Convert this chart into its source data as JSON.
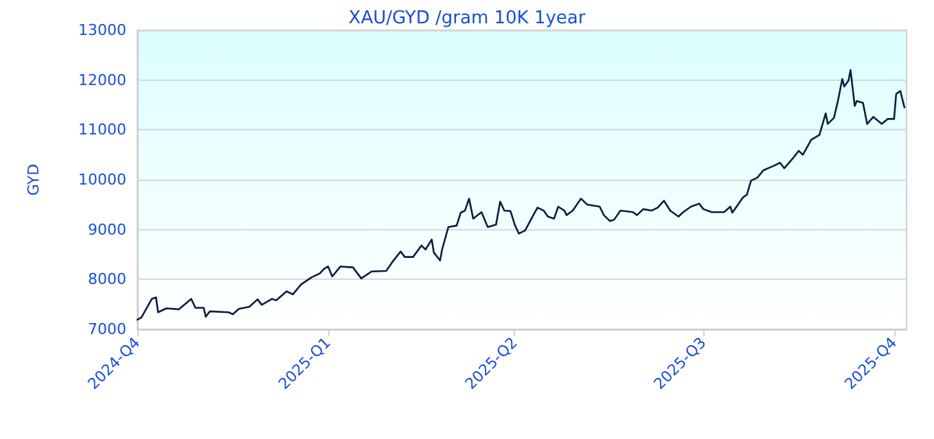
{
  "chart_data": {
    "type": "line",
    "title": "XAU/GYD /gram 10K 1year",
    "ylabel": "GYD",
    "x": [
      "2024-10-01",
      "2024-10-03",
      "2024-10-08",
      "2024-10-10",
      "2024-10-11",
      "2024-10-15",
      "2024-10-21",
      "2024-10-27",
      "2024-10-29",
      "2024-11-02",
      "2024-11-03",
      "2024-11-05",
      "2024-11-14",
      "2024-11-16",
      "2024-11-19",
      "2024-11-24",
      "2024-11-28",
      "2024-11-30",
      "2024-12-05",
      "2024-12-07",
      "2024-12-12",
      "2024-12-15",
      "2024-12-19",
      "2024-12-24",
      "2024-12-28",
      "2024-12-30",
      "2025-01-01",
      "2025-01-03",
      "2025-01-07",
      "2025-01-13",
      "2025-01-17",
      "2025-01-22",
      "2025-01-29",
      "2025-02-01",
      "2025-02-05",
      "2025-02-07",
      "2025-02-11",
      "2025-02-15",
      "2025-02-17",
      "2025-02-20",
      "2025-02-21",
      "2025-02-24",
      "2025-02-25",
      "2025-02-28",
      "2025-03-04",
      "2025-03-06",
      "2025-03-08",
      "2025-03-10",
      "2025-03-12",
      "2025-03-16",
      "2025-03-19",
      "2025-03-23",
      "2025-03-25",
      "2025-03-27",
      "2025-03-30",
      "2025-04-01",
      "2025-04-03",
      "2025-04-06",
      "2025-04-10",
      "2025-04-12",
      "2025-04-15",
      "2025-04-17",
      "2025-04-20",
      "2025-04-22",
      "2025-04-25",
      "2025-04-26",
      "2025-04-29",
      "2025-05-03",
      "2025-05-06",
      "2025-05-12",
      "2025-05-14",
      "2025-05-17",
      "2025-05-19",
      "2025-05-22",
      "2025-05-28",
      "2025-05-30",
      "2025-06-02",
      "2025-06-06",
      "2025-06-09",
      "2025-06-12",
      "2025-06-15",
      "2025-06-19",
      "2025-06-21",
      "2025-06-25",
      "2025-06-29",
      "2025-07-01",
      "2025-07-05",
      "2025-07-11",
      "2025-07-14",
      "2025-07-15",
      "2025-07-20",
      "2025-07-22",
      "2025-07-24",
      "2025-07-27",
      "2025-07-30",
      "2025-08-04",
      "2025-08-07",
      "2025-08-09",
      "2025-08-13",
      "2025-08-16",
      "2025-08-18",
      "2025-08-22",
      "2025-08-26",
      "2025-08-29",
      "2025-08-30",
      "2025-09-02",
      "2025-09-04",
      "2025-09-06",
      "2025-09-07",
      "2025-09-09",
      "2025-09-10",
      "2025-09-12",
      "2025-09-13",
      "2025-09-16",
      "2025-09-18",
      "2025-09-21",
      "2025-09-25",
      "2025-09-28",
      "2025-10-01",
      "2025-10-02",
      "2025-10-04",
      "2025-10-06"
    ],
    "series": [
      {
        "color": "#0b1f3f",
        "values": [
          7190,
          7240,
          7610,
          7640,
          7340,
          7420,
          7400,
          7610,
          7430,
          7430,
          7250,
          7360,
          7340,
          7300,
          7410,
          7450,
          7600,
          7490,
          7610,
          7580,
          7760,
          7700,
          7900,
          8040,
          8120,
          8210,
          8260,
          8060,
          8260,
          8240,
          8020,
          8160,
          8170,
          8350,
          8560,
          8450,
          8450,
          8680,
          8600,
          8800,
          8540,
          8380,
          8600,
          9050,
          9080,
          9340,
          9380,
          9620,
          9220,
          9350,
          9050,
          9100,
          9560,
          9380,
          9370,
          9100,
          8920,
          8980,
          9290,
          9440,
          9380,
          9260,
          9220,
          9460,
          9380,
          9290,
          9380,
          9620,
          9500,
          9460,
          9290,
          9170,
          9200,
          9380,
          9350,
          9290,
          9410,
          9380,
          9440,
          9580,
          9380,
          9260,
          9340,
          9460,
          9520,
          9410,
          9350,
          9350,
          9460,
          9340,
          9640,
          9700,
          9980,
          10040,
          10190,
          10280,
          10340,
          10230,
          10420,
          10580,
          10500,
          10800,
          10900,
          11330,
          11120,
          11240,
          11600,
          12020,
          11870,
          11990,
          12200,
          11480,
          11580,
          11540,
          11120,
          11260,
          11120,
          11220,
          11220,
          11720,
          11780,
          11450
        ]
      }
    ],
    "xlim": [
      "2024-10-01",
      "2025-10-07"
    ],
    "xticks": [
      {
        "value": "2024-10-01",
        "label": "2024-Q4"
      },
      {
        "value": "2025-01-01",
        "label": "2025-Q1"
      },
      {
        "value": "2025-04-01",
        "label": "2025-Q2"
      },
      {
        "value": "2025-07-01",
        "label": "2025-Q3"
      },
      {
        "value": "2025-10-01",
        "label": "2025-Q4"
      }
    ],
    "ylim": [
      7000,
      13000
    ],
    "yticks": [
      7000,
      8000,
      9000,
      10000,
      11000,
      12000,
      13000
    ],
    "grid": "y",
    "marker": "none",
    "line_style": "solid"
  }
}
